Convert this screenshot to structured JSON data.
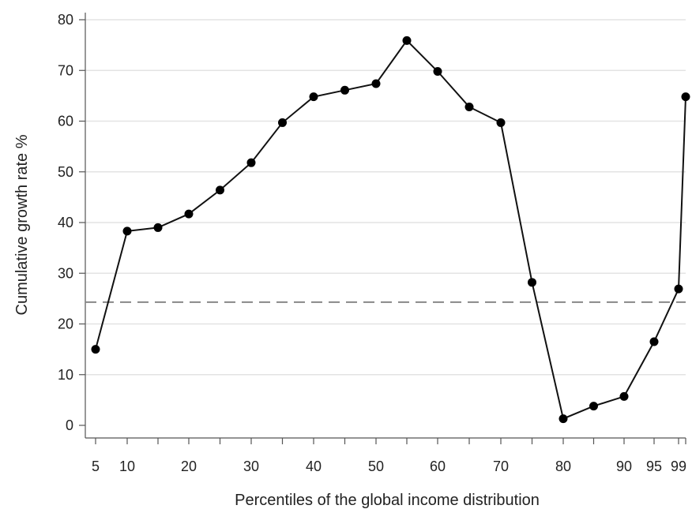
{
  "chart_data": {
    "type": "line",
    "title": "",
    "xlabel": "Percentiles of the global income distribution",
    "ylabel": "Cumulative growth rate %",
    "x": [
      5,
      10,
      15,
      20,
      25,
      30,
      35,
      40,
      45,
      50,
      55,
      60,
      65,
      70,
      75,
      80,
      85,
      90,
      95,
      99,
      100
    ],
    "series": [
      {
        "values": [
          15,
          38.3,
          39,
          41.7,
          46.4,
          51.8,
          59.7,
          64.8,
          66.1,
          67.4,
          75.9,
          69.8,
          62.8,
          59.7,
          28.2,
          1.3,
          3.8,
          5.7,
          16.5,
          26.9,
          64.8
        ],
        "color": "#000000",
        "markers": true
      }
    ],
    "reference_line": {
      "y": 24.3,
      "style": "dashed",
      "color": "#888888"
    },
    "x_tick_labels": [
      5,
      10,
      20,
      30,
      40,
      50,
      60,
      70,
      80,
      90,
      95,
      99
    ],
    "y_ticks": [
      0,
      10,
      20,
      30,
      40,
      50,
      60,
      70,
      80
    ],
    "ylim": [
      0,
      80
    ],
    "grid": "horizontal",
    "legend": "none"
  }
}
